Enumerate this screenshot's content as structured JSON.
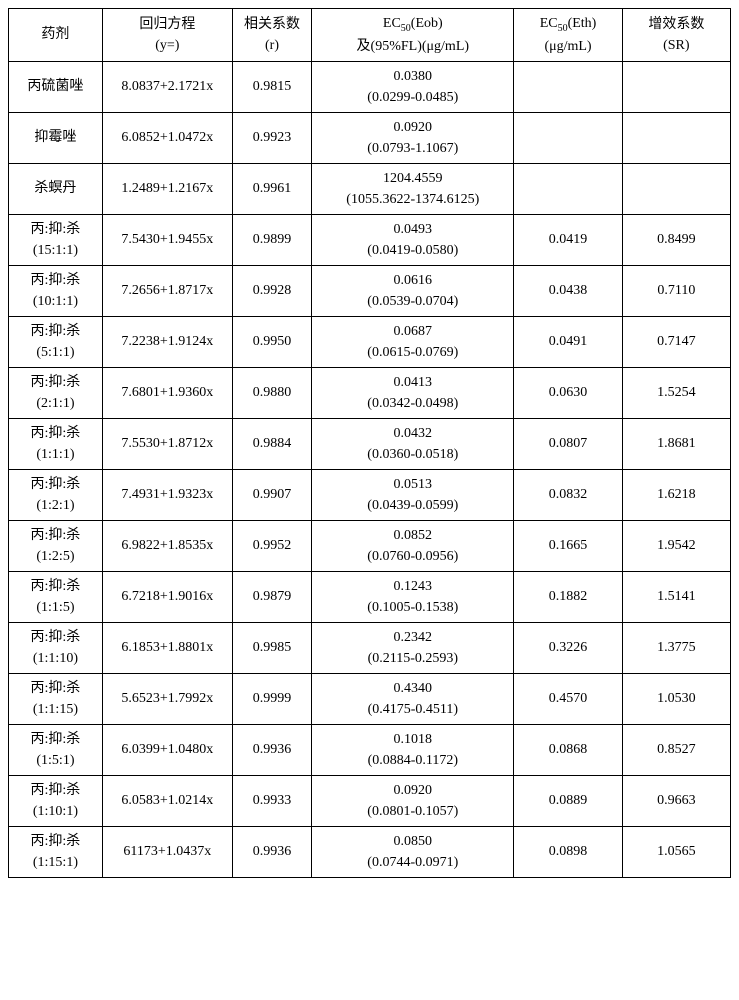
{
  "headers": {
    "agent": {
      "line1": "药剂",
      "line2": ""
    },
    "regression": {
      "line1": "回归方程",
      "line2": "(y=)"
    },
    "correlation": {
      "line1": "相关系数",
      "line2": "(r)"
    },
    "ec50eob": {
      "line1": "EC₅₀(Eob)",
      "line2": "及(95%FL)(μg/mL)"
    },
    "ec50eth": {
      "line1": "EC₅₀(Eth)",
      "line2": "(μg/mL)"
    },
    "sr": {
      "line1": "增效系数",
      "line2": "(SR)"
    }
  },
  "rows": [
    {
      "agent": "丙硫菌唑",
      "regression": "8.0837+2.1721x",
      "correlation": "0.9815",
      "ec50eob_val": "0.0380",
      "ec50eob_ci": "(0.0299-0.0485)",
      "ec50eth": "",
      "sr": ""
    },
    {
      "agent": "抑霉唑",
      "regression": "6.0852+1.0472x",
      "correlation": "0.9923",
      "ec50eob_val": "0.0920",
      "ec50eob_ci": "(0.0793-1.1067)",
      "ec50eth": "",
      "sr": ""
    },
    {
      "agent": "杀螟丹",
      "regression": "1.2489+1.2167x",
      "correlation": "0.9961",
      "ec50eob_val": "1204.4559",
      "ec50eob_ci": "(1055.3622-1374.6125)",
      "ec50eth": "",
      "sr": ""
    },
    {
      "agent_l1": "丙:抑:杀",
      "agent_l2": "(15:1:1)",
      "regression": "7.5430+1.9455x",
      "correlation": "0.9899",
      "ec50eob_val": "0.0493",
      "ec50eob_ci": "(0.0419-0.0580)",
      "ec50eth": "0.0419",
      "sr": "0.8499"
    },
    {
      "agent_l1": "丙:抑:杀",
      "agent_l2": "(10:1:1)",
      "regression": "7.2656+1.8717x",
      "correlation": "0.9928",
      "ec50eob_val": "0.0616",
      "ec50eob_ci": "(0.0539-0.0704)",
      "ec50eth": "0.0438",
      "sr": "0.7110"
    },
    {
      "agent_l1": "丙:抑:杀",
      "agent_l2": "(5:1:1)",
      "regression": "7.2238+1.9124x",
      "correlation": "0.9950",
      "ec50eob_val": "0.0687",
      "ec50eob_ci": "(0.0615-0.0769)",
      "ec50eth": "0.0491",
      "sr": "0.7147"
    },
    {
      "agent_l1": "丙:抑:杀",
      "agent_l2": "(2:1:1)",
      "regression": "7.6801+1.9360x",
      "correlation": "0.9880",
      "ec50eob_val": "0.0413",
      "ec50eob_ci": "(0.0342-0.0498)",
      "ec50eth": "0.0630",
      "sr": "1.5254"
    },
    {
      "agent_l1": "丙:抑:杀",
      "agent_l2": "(1:1:1)",
      "regression": "7.5530+1.8712x",
      "correlation": "0.9884",
      "ec50eob_val": "0.0432",
      "ec50eob_ci": "(0.0360-0.0518)",
      "ec50eth": "0.0807",
      "sr": "1.8681"
    },
    {
      "agent_l1": "丙:抑:杀",
      "agent_l2": "(1:2:1)",
      "regression": "7.4931+1.9323x",
      "correlation": "0.9907",
      "ec50eob_val": "0.0513",
      "ec50eob_ci": "(0.0439-0.0599)",
      "ec50eth": "0.0832",
      "sr": "1.6218"
    },
    {
      "agent_l1": "丙:抑:杀",
      "agent_l2": "(1:2:5)",
      "regression": "6.9822+1.8535x",
      "correlation": "0.9952",
      "ec50eob_val": "0.0852",
      "ec50eob_ci": "(0.0760-0.0956)",
      "ec50eth": "0.1665",
      "sr": "1.9542"
    },
    {
      "agent_l1": "丙:抑:杀",
      "agent_l2": "(1:1:5)",
      "regression": "6.7218+1.9016x",
      "correlation": "0.9879",
      "ec50eob_val": "0.1243",
      "ec50eob_ci": "(0.1005-0.1538)",
      "ec50eth": "0.1882",
      "sr": "1.5141"
    },
    {
      "agent_l1": "丙:抑:杀",
      "agent_l2": "(1:1:10)",
      "regression": "6.1853+1.8801x",
      "correlation": "0.9985",
      "ec50eob_val": "0.2342",
      "ec50eob_ci": "(0.2115-0.2593)",
      "ec50eth": "0.3226",
      "sr": "1.3775"
    },
    {
      "agent_l1": "丙:抑:杀",
      "agent_l2": "(1:1:15)",
      "regression": "5.6523+1.7992x",
      "correlation": "0.9999",
      "ec50eob_val": "0.4340",
      "ec50eob_ci": "(0.4175-0.4511)",
      "ec50eth": "0.4570",
      "sr": "1.0530"
    },
    {
      "agent_l1": "丙:抑:杀",
      "agent_l2": "(1:5:1)",
      "regression": "6.0399+1.0480x",
      "correlation": "0.9936",
      "ec50eob_val": "0.1018",
      "ec50eob_ci": "(0.0884-0.1172)",
      "ec50eth": "0.0868",
      "sr": "0.8527"
    },
    {
      "agent_l1": "丙:抑:杀",
      "agent_l2": "(1:10:1)",
      "regression": "6.0583+1.0214x",
      "correlation": "0.9933",
      "ec50eob_val": "0.0920",
      "ec50eob_ci": "(0.0801-0.1057)",
      "ec50eth": "0.0889",
      "sr": "0.9663"
    },
    {
      "agent_l1": "丙:抑:杀",
      "agent_l2": "(1:15:1)",
      "regression": "61173+1.0437x",
      "correlation": "0.9936",
      "ec50eob_val": "0.0850",
      "ec50eob_ci": "(0.0744-0.0971)",
      "ec50eth": "0.0898",
      "sr": "1.0565"
    }
  ]
}
